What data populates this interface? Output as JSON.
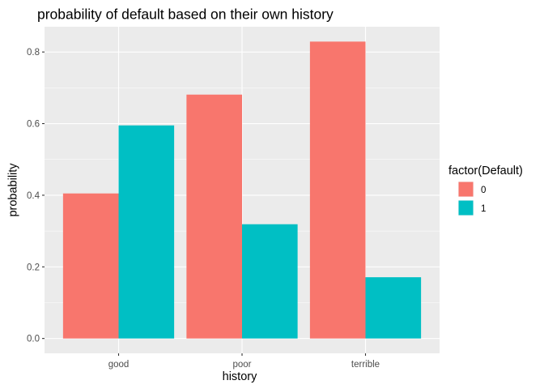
{
  "chart_data": {
    "type": "bar",
    "title": "probability of default based on their own history",
    "xlabel": "history",
    "ylabel": "probability",
    "categories": [
      "good",
      "poor",
      "terrible"
    ],
    "series": [
      {
        "name": "0",
        "color": "#F8766D",
        "values": [
          0.405,
          0.681,
          0.829
        ]
      },
      {
        "name": "1",
        "color": "#00BFC4",
        "values": [
          0.595,
          0.319,
          0.171
        ]
      }
    ],
    "ylim": [
      -0.0415,
      0.8705
    ],
    "yticks": [
      0.0,
      0.2,
      0.4,
      0.6,
      0.8
    ],
    "ytick_labels": [
      "0.0",
      "0.2",
      "0.4",
      "0.6",
      "0.8"
    ],
    "grid": true,
    "panel_background": "#EBEBEB",
    "legend": {
      "title": "factor(Default)",
      "position": "right",
      "labels": [
        "0",
        "1"
      ]
    }
  }
}
